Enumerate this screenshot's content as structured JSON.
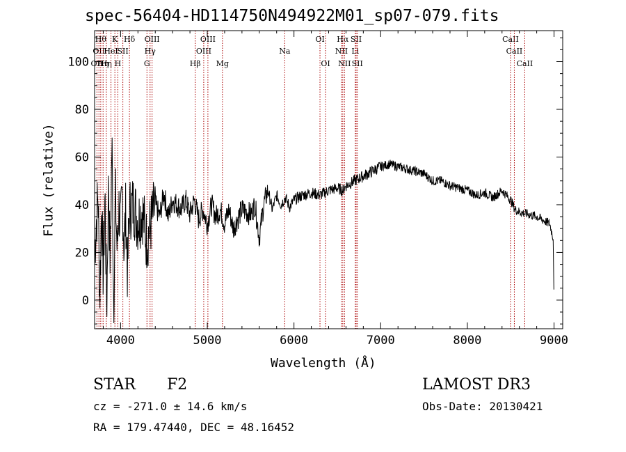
{
  "chart_data": {
    "type": "line",
    "title": "spec-56404-HD114750N494922M01_sp07-079.fits",
    "xlabel": "Wavelength (Å)",
    "ylabel": "Flux (relative)",
    "xlim": [
      3700,
      9100
    ],
    "ylim": [
      -12,
      113
    ],
    "xticks": [
      4000,
      5000,
      6000,
      7000,
      8000,
      9000
    ],
    "yticks": [
      0,
      20,
      40,
      60,
      80,
      100
    ],
    "grid": false,
    "series": [
      {
        "name": "flux",
        "x": [
          3700,
          3740,
          3760,
          3780,
          3800,
          3820,
          3840,
          3860,
          3880,
          3900,
          3920,
          3940,
          3960,
          3980,
          4000,
          4020,
          4040,
          4060,
          4080,
          4100,
          4150,
          4200,
          4250,
          4300,
          4350,
          4400,
          4450,
          4500,
          4550,
          4600,
          4650,
          4700,
          4750,
          4800,
          4850,
          4900,
          4950,
          5000,
          5050,
          5100,
          5150,
          5200,
          5250,
          5300,
          5400,
          5500,
          5550,
          5600,
          5650,
          5700,
          5750,
          5800,
          5850,
          5900,
          5950,
          6000,
          6100,
          6200,
          6300,
          6400,
          6500,
          6563,
          6600,
          6700,
          6800,
          6900,
          7000,
          7100,
          7200,
          7300,
          7400,
          7500,
          7600,
          7700,
          7800,
          7900,
          8000,
          8100,
          8200,
          8300,
          8400,
          8500,
          8550,
          8600,
          8700,
          8800,
          8900,
          8950,
          8990,
          9000
        ],
        "y": [
          20,
          45,
          0,
          40,
          10,
          45,
          -5,
          50,
          15,
          68,
          -3,
          45,
          20,
          40,
          30,
          45,
          22,
          38,
          10,
          38,
          40,
          33,
          38,
          25,
          32,
          40,
          35,
          45,
          35,
          42,
          40,
          38,
          42,
          36,
          42,
          34,
          38,
          32,
          40,
          35,
          38,
          32,
          38,
          30,
          38,
          36,
          40,
          26,
          40,
          46,
          38,
          44,
          40,
          43,
          39,
          42,
          44,
          45,
          44,
          46,
          47,
          46,
          48,
          50,
          52,
          54,
          56,
          57,
          56,
          55,
          54,
          53,
          50,
          50,
          48,
          47,
          46,
          44,
          45,
          43,
          46,
          42,
          38,
          37,
          36,
          35,
          33,
          32,
          26,
          -1
        ]
      }
    ],
    "lines": [
      {
        "lam": 3727,
        "label": "OII",
        "row": 2
      },
      {
        "lam": 3750,
        "label": "OII",
        "row": 1
      },
      {
        "lam": 3771,
        "label": "Hθ",
        "row": 0
      },
      {
        "lam": 3798,
        "label": "Hη",
        "row": 2
      },
      {
        "lam": 3835,
        "label": "Hη",
        "row": 2
      },
      {
        "lam": 3889,
        "label": "HeI",
        "row": 1
      },
      {
        "lam": 3934,
        "label": "K",
        "row": 0
      },
      {
        "lam": 3968,
        "label": "H",
        "row": 2
      },
      {
        "lam": 4026,
        "label": "SII",
        "row": 1
      },
      {
        "lam": 4102,
        "label": "Hδ",
        "row": 0
      },
      {
        "lam": 4304,
        "label": "G",
        "row": 2
      },
      {
        "lam": 4340,
        "label": "Hγ",
        "row": 1
      },
      {
        "lam": 4363,
        "label": "OIII",
        "row": 0
      },
      {
        "lam": 4861,
        "label": "Hβ",
        "row": 2
      },
      {
        "lam": 4959,
        "label": "OIII",
        "row": 1
      },
      {
        "lam": 5007,
        "label": "OIII",
        "row": 0
      },
      {
        "lam": 5175,
        "label": "Mg",
        "row": 2
      },
      {
        "lam": 5893,
        "label": "Na",
        "row": 1
      },
      {
        "lam": 6300,
        "label": "OI",
        "row": 0
      },
      {
        "lam": 6364,
        "label": "OI",
        "row": 2
      },
      {
        "lam": 6548,
        "label": "NII",
        "row": 1
      },
      {
        "lam": 6563,
        "label": "Hα",
        "row": 0
      },
      {
        "lam": 6583,
        "label": "NII",
        "row": 2
      },
      {
        "lam": 6707,
        "label": "Li",
        "row": 1
      },
      {
        "lam": 6717,
        "label": "SII",
        "row": 0
      },
      {
        "lam": 6731,
        "label": "SII",
        "row": 2
      },
      {
        "lam": 8498,
        "label": "CaII",
        "row": 0
      },
      {
        "lam": 8542,
        "label": "CaII",
        "row": 1
      },
      {
        "lam": 8662,
        "label": "CaII",
        "row": 2
      }
    ],
    "line_color": "#aa0000"
  },
  "footer": {
    "obj_class": "STAR",
    "subclass": "F2",
    "survey": "LAMOST DR3",
    "cz": "cz = -271.0 ± 14.6 km/s",
    "obs_date": "Obs-Date: 20130421",
    "radec": "RA = 179.47440, DEC =  48.16452"
  }
}
